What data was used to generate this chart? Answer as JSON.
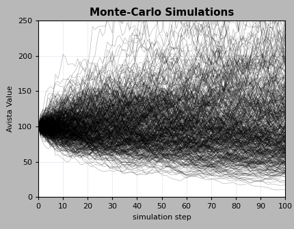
{
  "title": "Monte-Carlo Simulations",
  "xlabel": "simulation step",
  "ylabel": "Avista Value",
  "xlim": [
    0,
    100
  ],
  "ylim": [
    0,
    250
  ],
  "xticks": [
    0,
    10,
    20,
    30,
    40,
    50,
    60,
    70,
    80,
    90,
    100
  ],
  "yticks": [
    0,
    50,
    100,
    150,
    200,
    250
  ],
  "n_steps": 100,
  "n_simulations": 500,
  "start_value": 100,
  "drift": 0.001,
  "volatility": 0.055,
  "seed": 12,
  "line_color": "#000000",
  "line_alpha": 0.35,
  "line_width": 0.4,
  "bg_color": "#ffffff",
  "fig_bg_color": "#b8b8b8",
  "grid_color": "#8888cc",
  "grid_alpha": 0.6,
  "grid_linewidth": 0.5,
  "title_fontsize": 11,
  "label_fontsize": 8,
  "tick_fontsize": 8
}
